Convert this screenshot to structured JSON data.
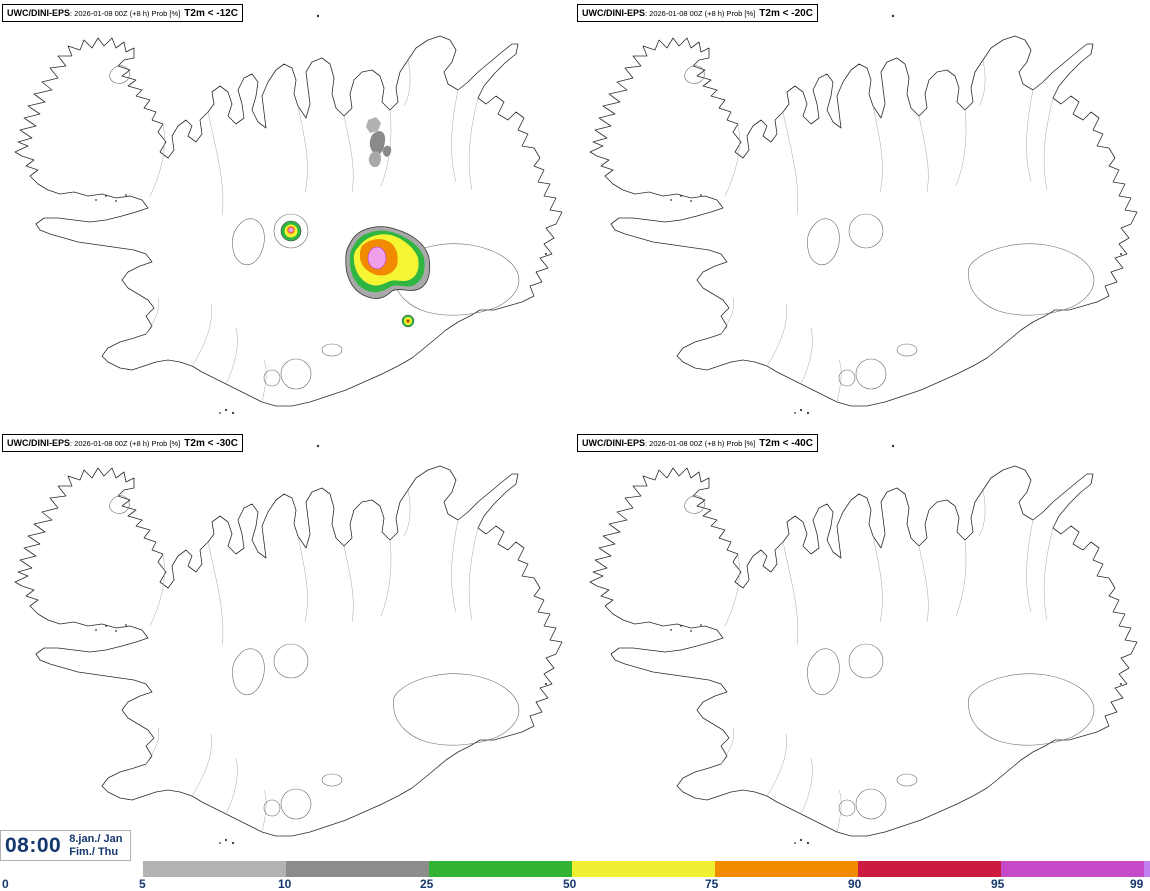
{
  "panels": [
    {
      "model": "UWC/DINI-EPS",
      "run": ": 2026-01-08 00Z (+8 h) Prob [%]",
      "threshold": "T2m < -12C"
    },
    {
      "model": "UWC/DINI-EPS",
      "run": ": 2026-01-08 00Z (+8 h) Prob [%]",
      "threshold": "T2m < -20C"
    },
    {
      "model": "UWC/DINI-EPS",
      "run": ": 2026-01-08 00Z (+8 h) Prob [%]",
      "threshold": "T2m < -30C"
    },
    {
      "model": "UWC/DINI-EPS",
      "run": ": 2026-01-08 00Z (+8 h) Prob [%]",
      "threshold": "T2m < -40C"
    }
  ],
  "footer": {
    "time": "08:00",
    "date_line1": "8.jan./ Jan",
    "date_line2": "Fim./ Thu"
  },
  "colorbar": {
    "tick_labels": [
      "0",
      "5",
      "10",
      "25",
      "50",
      "75",
      "90",
      "95",
      "99"
    ],
    "tick_color": "#14386e",
    "segment_colors": [
      "#b3b3b3",
      "#8c8c8c",
      "#33b333",
      "#f0f033",
      "#f28b00",
      "#cc1a40",
      "#c64ac8",
      "#c080f0"
    ]
  },
  "map": {
    "region": "Iceland",
    "coast_color": "#2b2b2b",
    "contour_color": "#a8a8a8",
    "glacier_color": "#6b6b6b"
  },
  "overlay": {
    "gray_light": "#a8a8a8",
    "gray_dark": "#8a8a8a",
    "green": "#2eb542",
    "yellow": "#f5f533",
    "orange": "#f28a00",
    "pink": "#f0a0ea",
    "magenta": "#c94fc9"
  }
}
